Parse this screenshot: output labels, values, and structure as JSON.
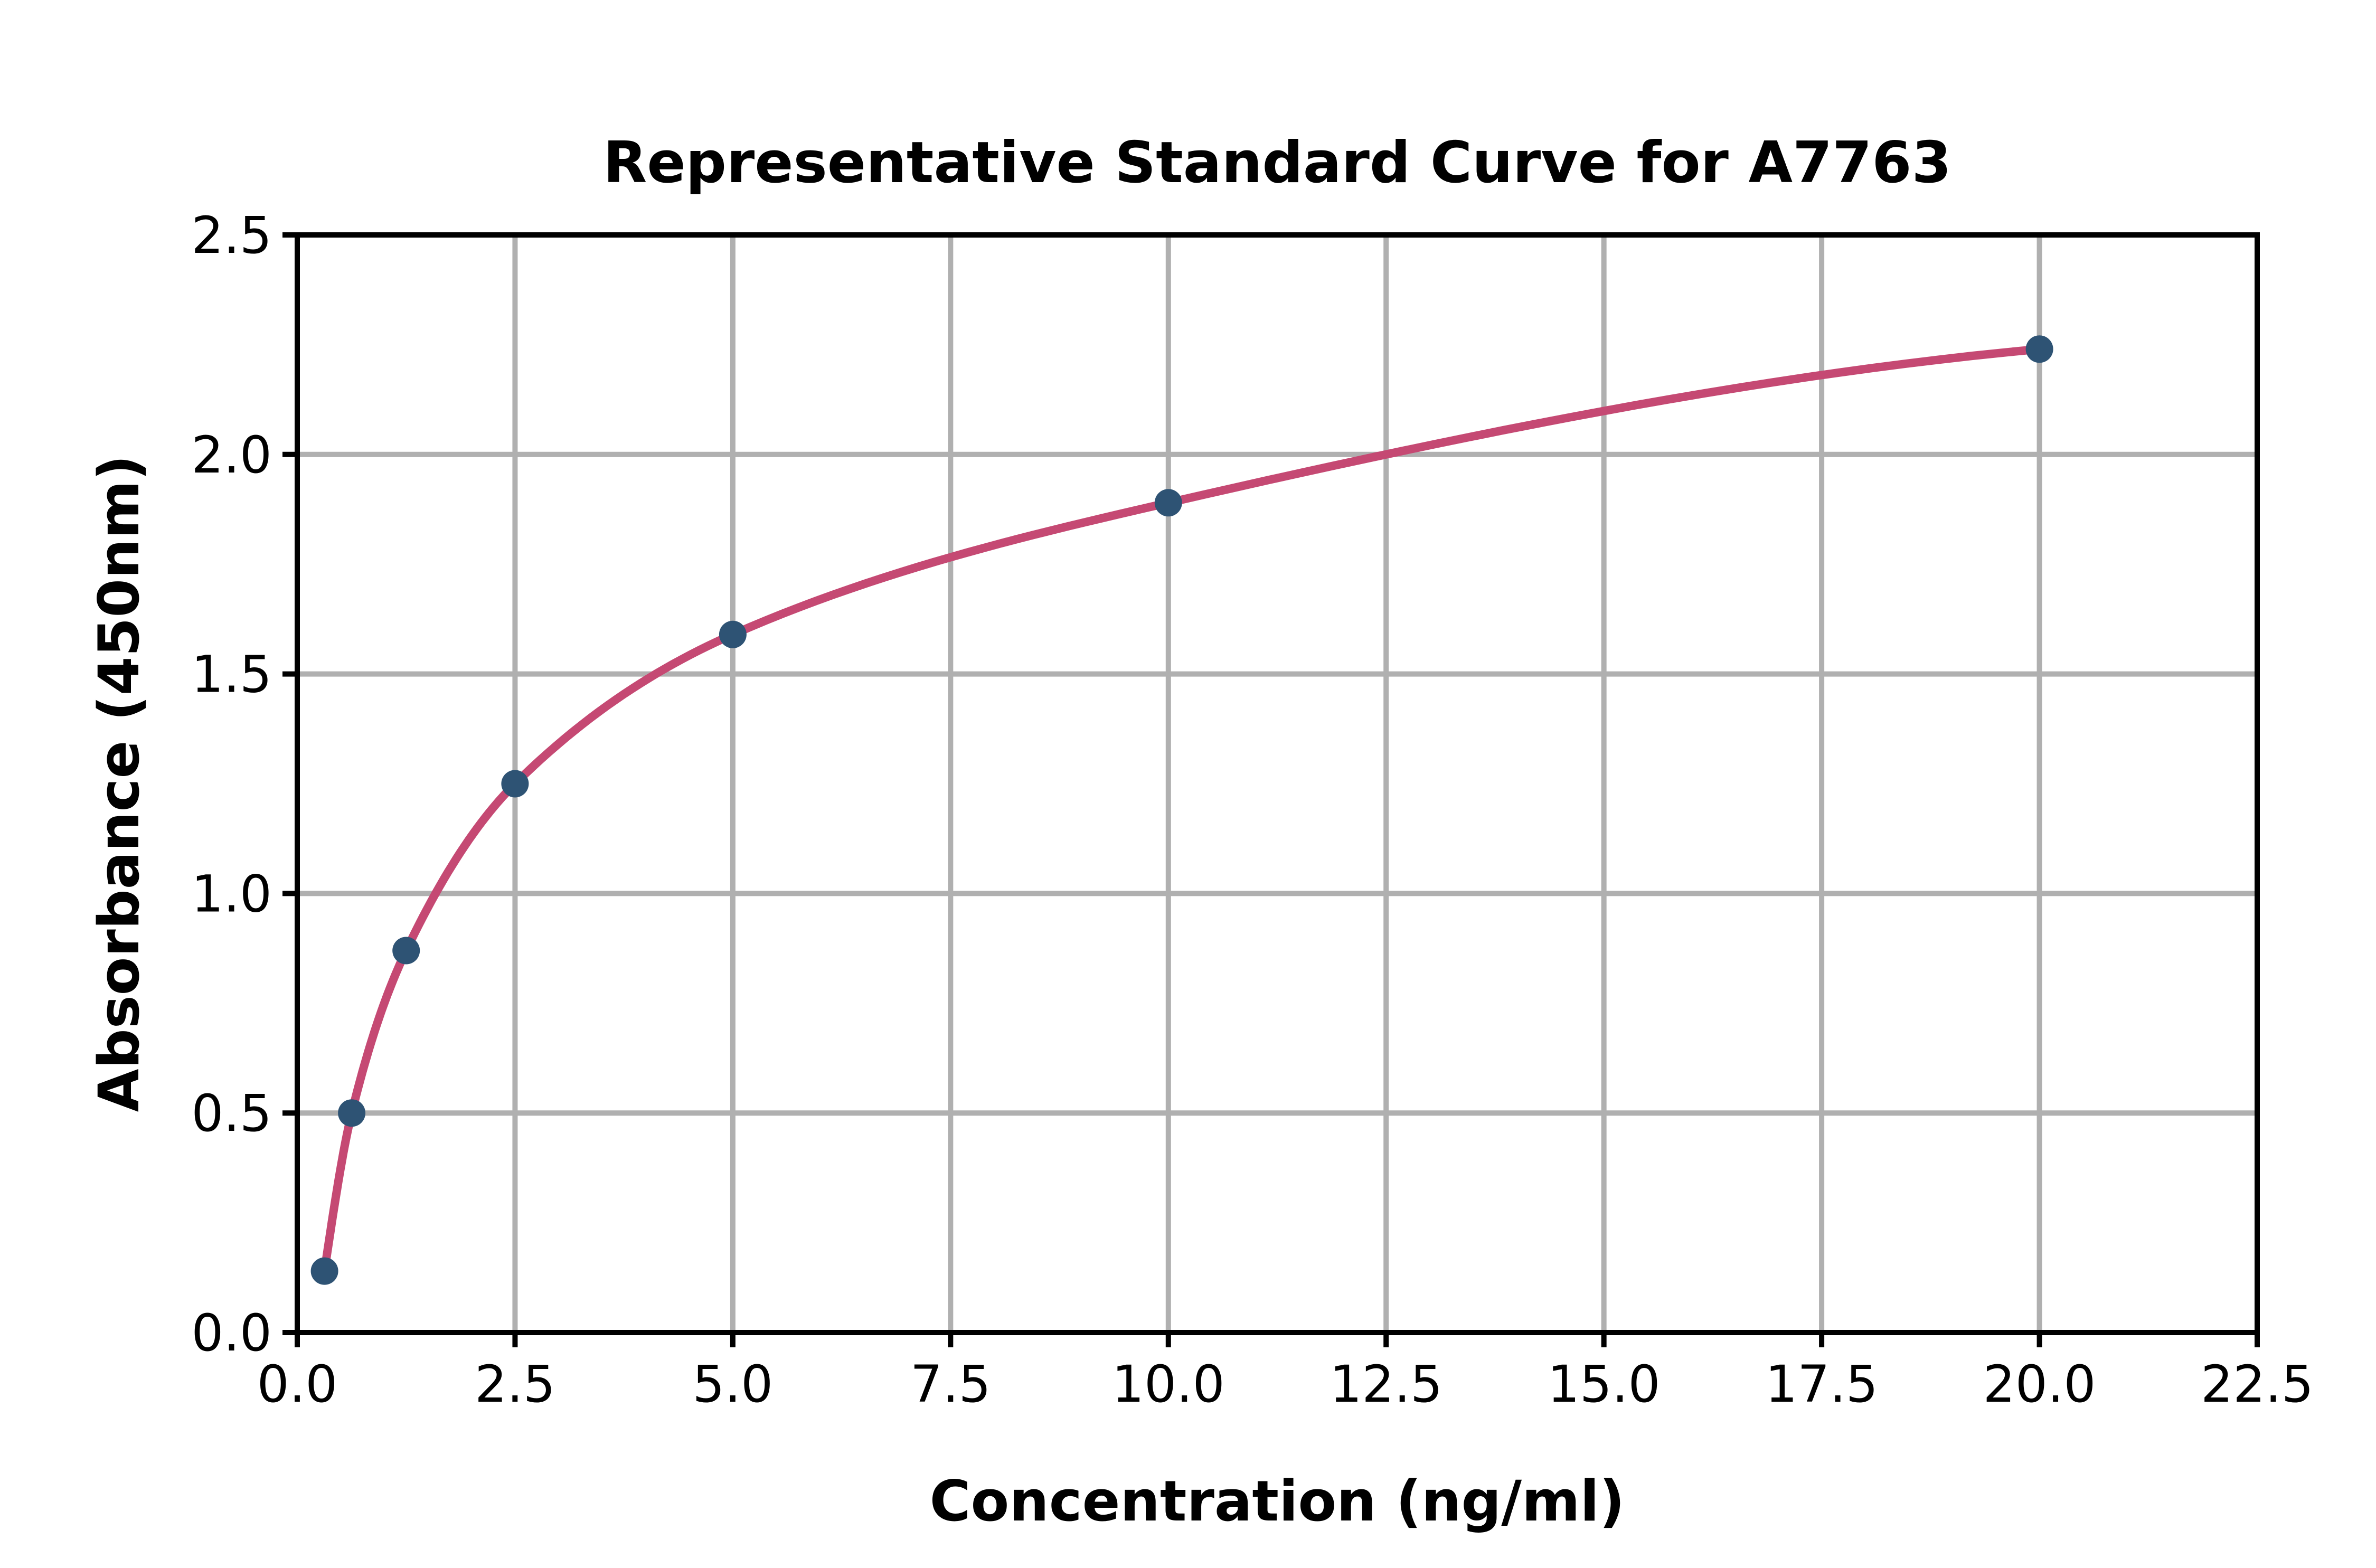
{
  "chart_data": {
    "type": "scatter",
    "title": "Representative Standard Curve for A7763",
    "xlabel": "Concentration (ng/ml)",
    "ylabel": "Absorbance (450nm)",
    "xlim": [
      0,
      22.5
    ],
    "ylim": [
      0,
      2.5
    ],
    "x_tick_labels": [
      "0.0",
      "2.5",
      "5.0",
      "7.5",
      "10.0",
      "12.5",
      "15.0",
      "17.5",
      "20.0",
      "22.5"
    ],
    "y_tick_labels": [
      "0.0",
      "0.5",
      "1.0",
      "1.5",
      "2.0",
      "2.5"
    ],
    "grid": true,
    "legend_position": "none",
    "points": {
      "name": "standards",
      "x": [
        0.3125,
        0.625,
        1.25,
        2.5,
        5.0,
        10.0,
        20.0
      ],
      "y": [
        0.14,
        0.5,
        0.87,
        1.25,
        1.59,
        1.89,
        2.24
      ]
    },
    "fit_curve": {
      "name": "4pl-fit",
      "style": "smooth-curve-through-points",
      "x_start": 0.3125,
      "x_end": 20.0
    },
    "colors": {
      "marker": "#2e5374",
      "curve": "#c54973",
      "grid": "#b0b0b0",
      "axis": "#000000",
      "text": "#000000",
      "background": "#ffffff"
    }
  }
}
